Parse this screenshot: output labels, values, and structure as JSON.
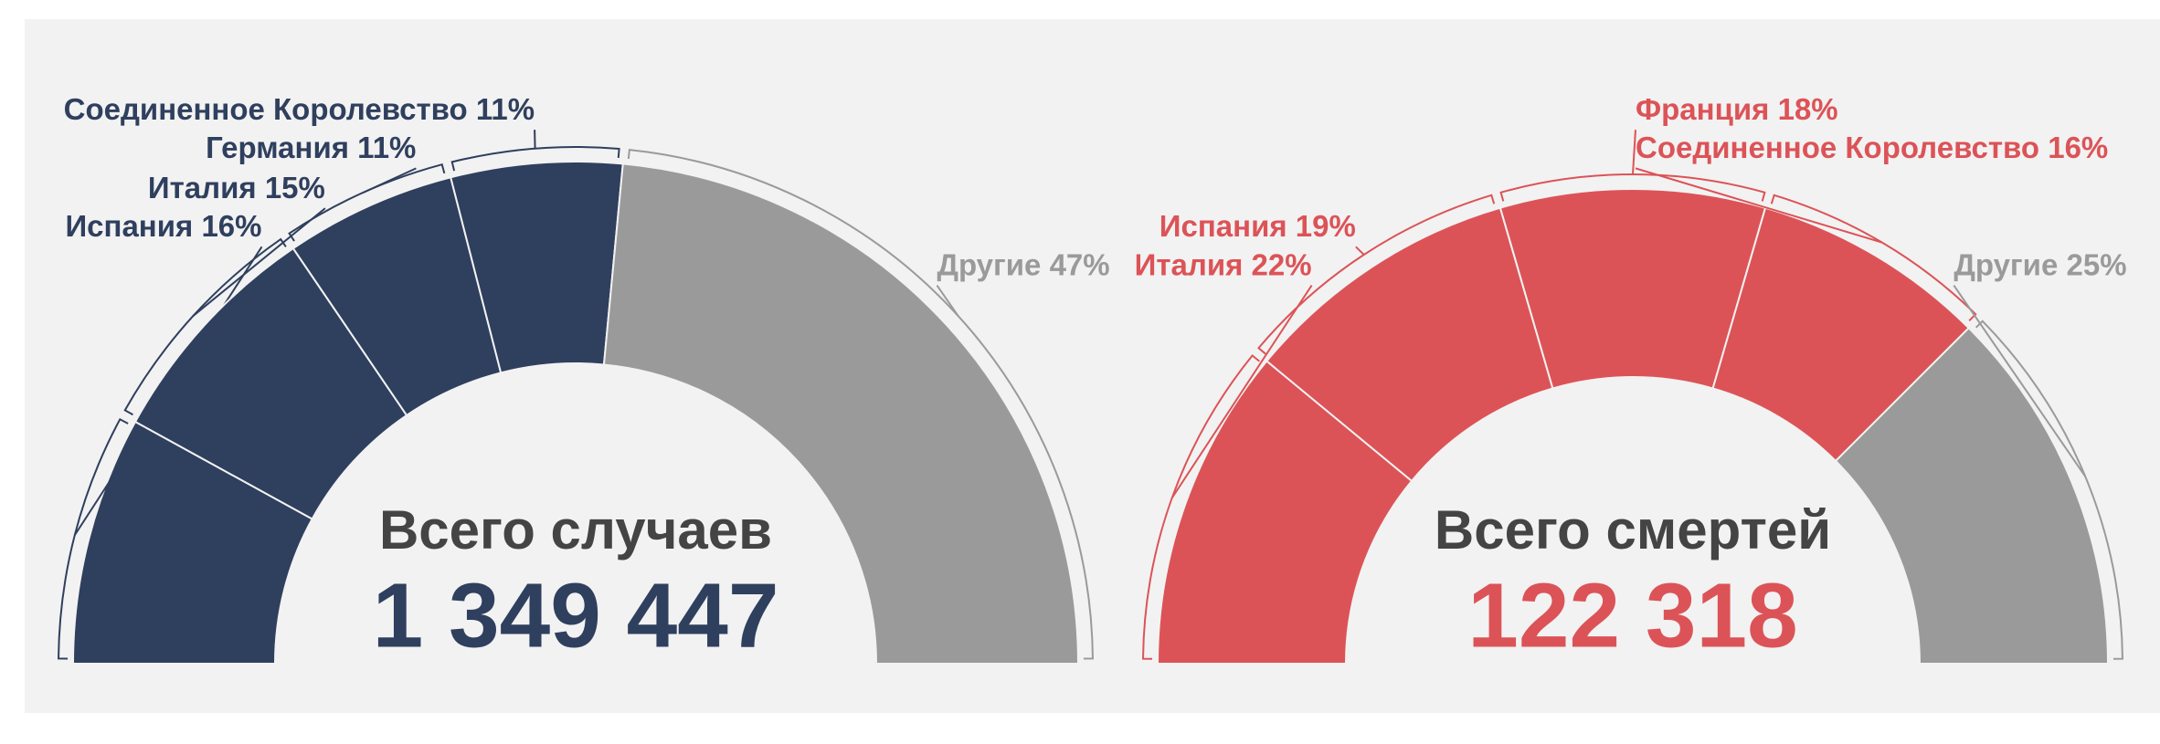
{
  "chart_data": [
    {
      "type": "pie",
      "title": "Всего случаев",
      "total": {
        "value": 1349447,
        "label": "1 349 447"
      },
      "total_color": "#2f3f5e",
      "categories": [
        "Испания",
        "Италия",
        "Германия",
        "Соединенное Королевство",
        "Другие"
      ],
      "values": [
        16,
        15,
        11,
        11,
        47
      ],
      "value_labels": [
        "Испания 16%",
        "Италия 15%",
        "Германия 11%",
        "Соединенное Королевство 11%",
        "Другие 47%"
      ],
      "colors": [
        "#2f3f5e",
        "#2f3f5e",
        "#2f3f5e",
        "#2f3f5e",
        "#9a9a9a"
      ]
    },
    {
      "type": "pie",
      "title": "Всего смертей",
      "total": {
        "value": 122318,
        "label": "122 318"
      },
      "total_color": "#dc5357",
      "categories": [
        "Италия",
        "Испания",
        "Франция",
        "Соединенное Королевство",
        "Другие"
      ],
      "values": [
        22,
        19,
        18,
        16,
        25
      ],
      "value_labels": [
        "Италия 22%",
        "Испания 19%",
        "Франция 18%",
        "Соединенное Королевство 16%",
        "Другие 25%"
      ],
      "colors": [
        "#dc5357",
        "#dc5357",
        "#dc5357",
        "#dc5357",
        "#9a9a9a"
      ]
    }
  ]
}
